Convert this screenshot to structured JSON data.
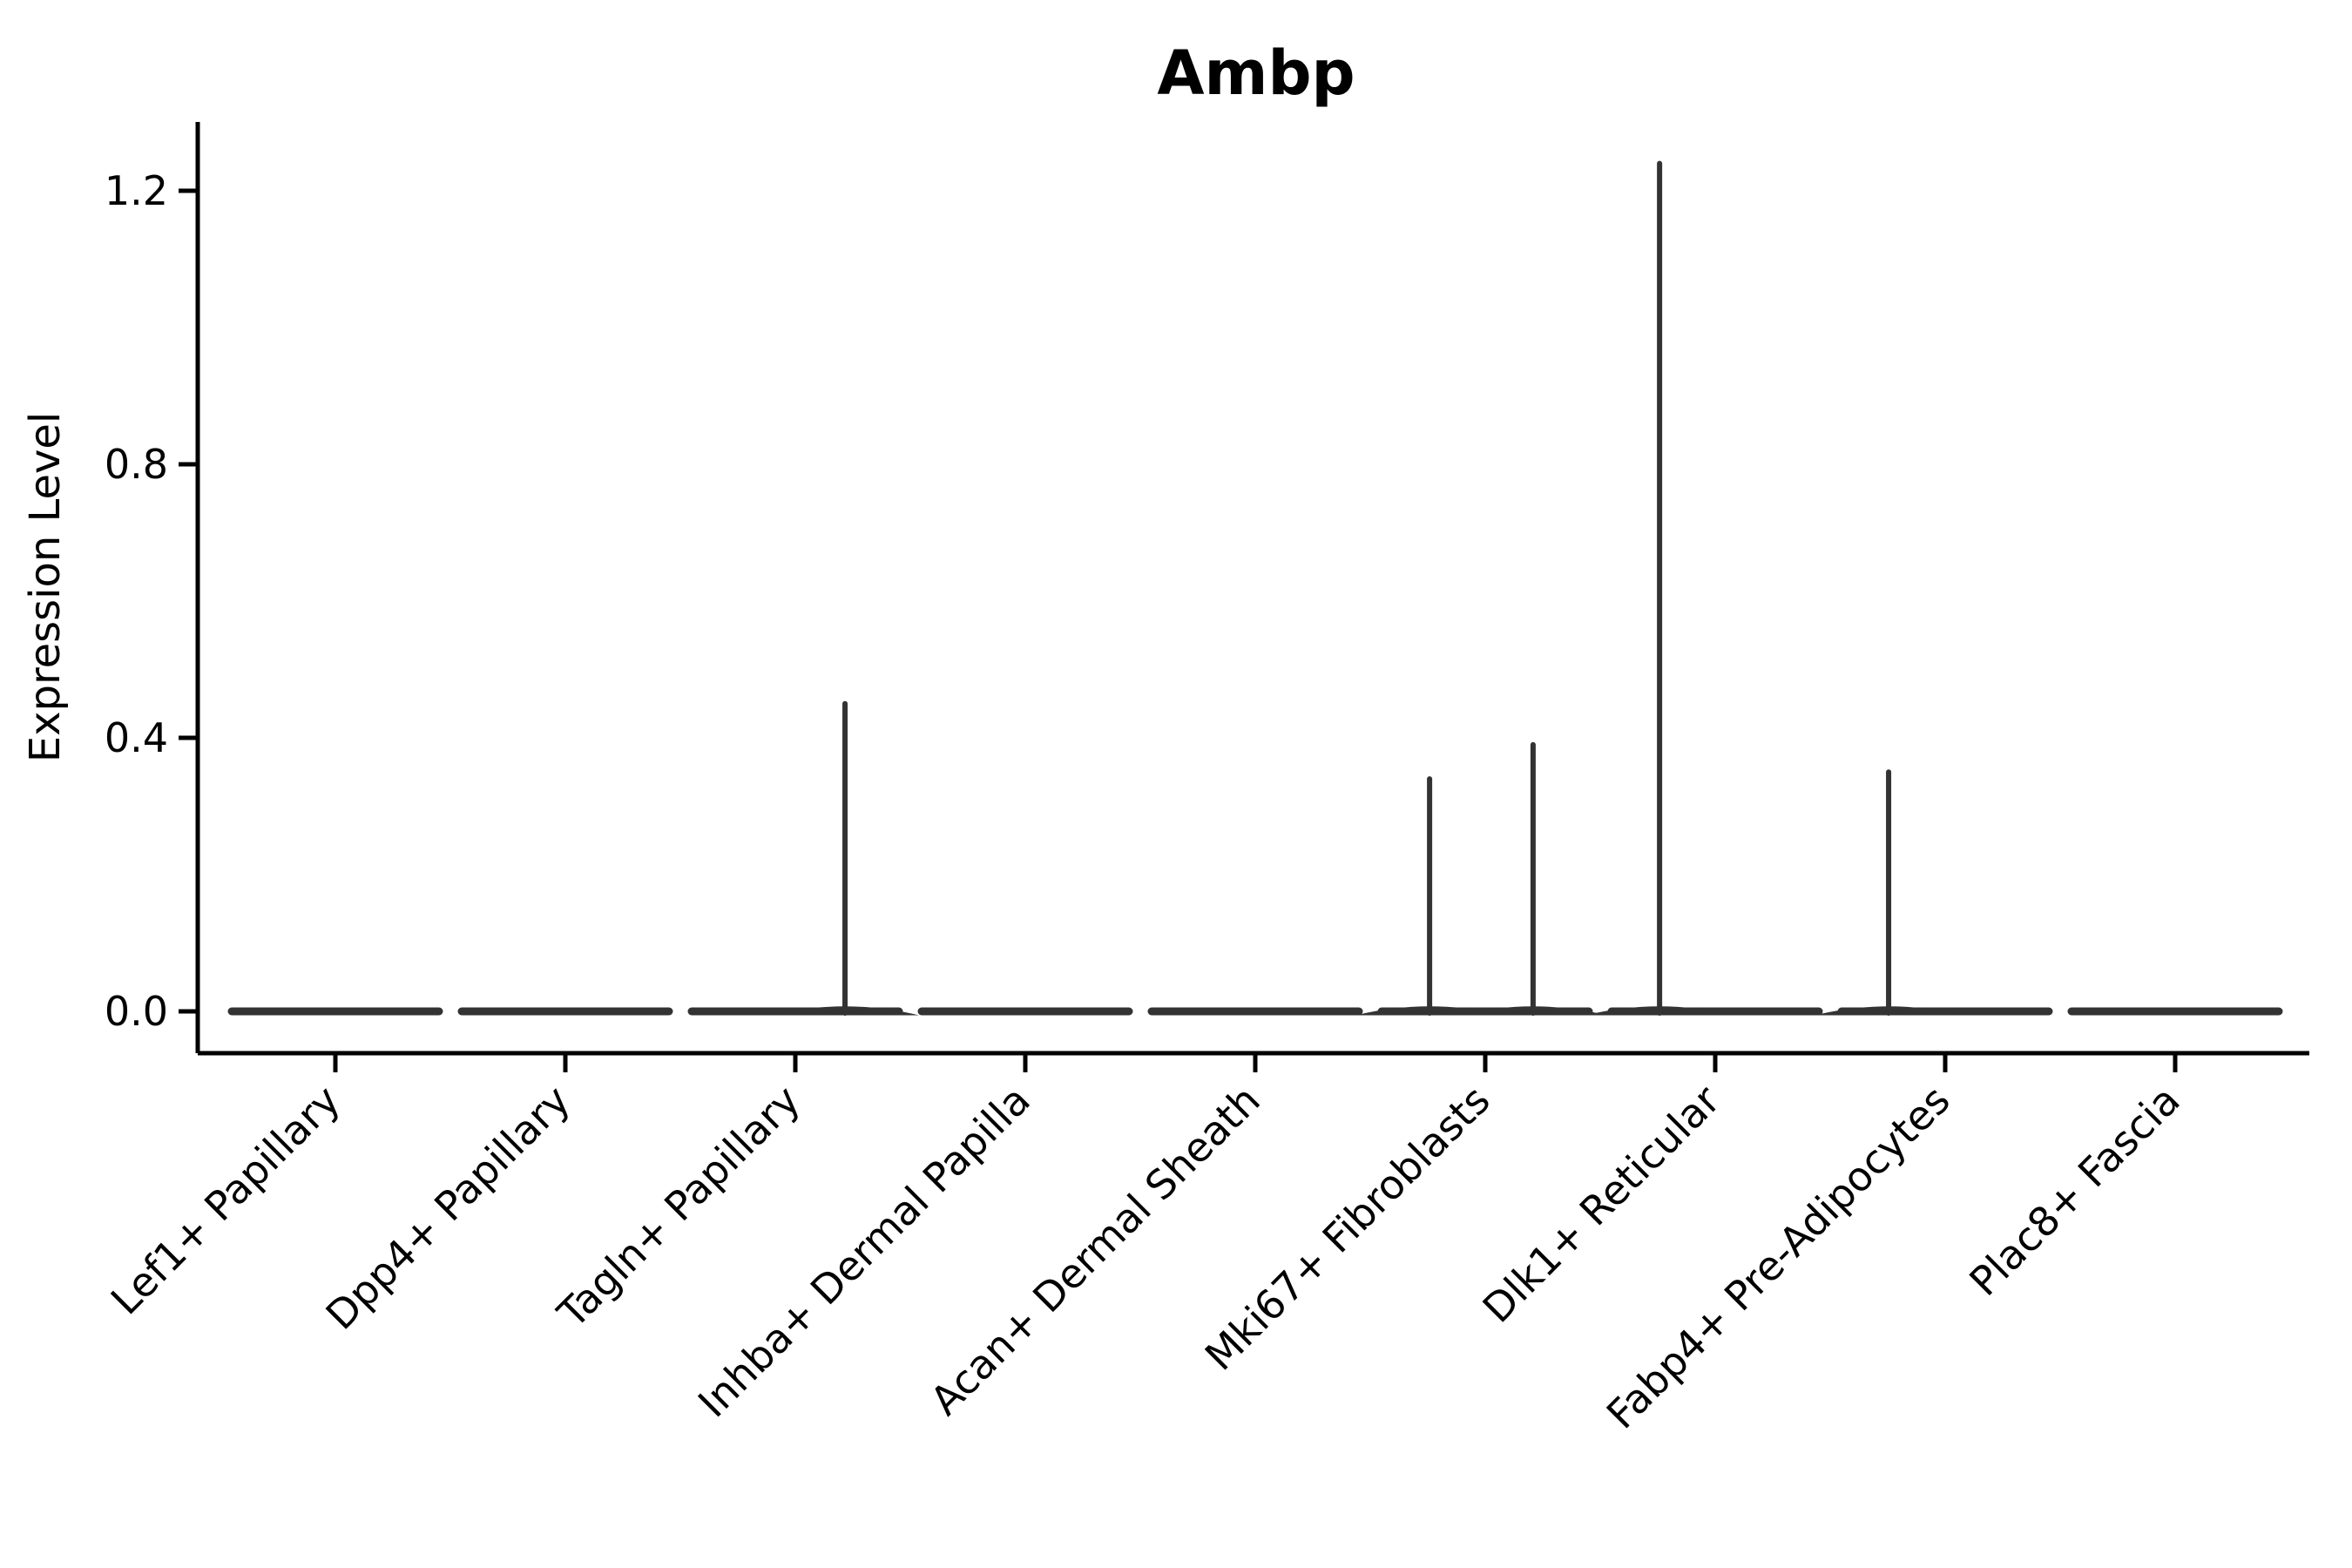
{
  "figure": {
    "title": "Ambp",
    "y_axis_label": "Expression Level"
  },
  "chart_data": {
    "type": "violin",
    "title": "Ambp",
    "xlabel": "",
    "ylabel": "Expression Level",
    "categories": [
      "Lef1+ Papillary",
      "Dpp4+ Papillary",
      "Tagln+ Papillary",
      "Inhba+ Dermal Papilla",
      "Acan+ Dermal Sheath",
      "Mki67+ Fibroblasts",
      "Dlk1+ Reticular",
      "Fabp4+ Pre-Adipocytes",
      "Plac8+ Fascia"
    ],
    "x_tick_rotation_deg": 45,
    "y_ticks": [
      0.0,
      0.4,
      0.8,
      1.2
    ],
    "y_tick_labels": [
      "0.0",
      "0.4",
      "0.8",
      "1.2"
    ],
    "ylim": [
      0.0,
      1.3
    ],
    "grid": false,
    "legend": "none",
    "violin_width_units": 0.9,
    "violin_color": "#333333",
    "axis_color": "#000000",
    "series": [
      {
        "category": "Lef1+ Papillary",
        "baseline_value": 0.0,
        "max_expression": 0.0,
        "spikes": []
      },
      {
        "category": "Dpp4+ Papillary",
        "baseline_value": 0.0,
        "max_expression": 0.0,
        "spikes": []
      },
      {
        "category": "Tagln+ Papillary",
        "baseline_value": 0.0,
        "max_expression": 0.45,
        "spikes": [
          {
            "x_offset_units": 0.216,
            "value": 0.45
          }
        ]
      },
      {
        "category": "Inhba+ Dermal Papilla",
        "baseline_value": 0.0,
        "max_expression": 0.0,
        "spikes": []
      },
      {
        "category": "Acan+ Dermal Sheath",
        "baseline_value": 0.0,
        "max_expression": 0.0,
        "spikes": []
      },
      {
        "category": "Mki67+ Fibroblasts",
        "baseline_value": 0.0,
        "max_expression": 0.39,
        "spikes": [
          {
            "x_offset_units": -0.242,
            "value": 0.34
          },
          {
            "x_offset_units": 0.208,
            "value": 0.39
          }
        ]
      },
      {
        "category": "Dlk1+ Reticular",
        "baseline_value": 0.0,
        "max_expression": 1.24,
        "spikes": [
          {
            "x_offset_units": -0.242,
            "value": 1.24
          }
        ]
      },
      {
        "category": "Fabp4+ Pre-Adipocytes",
        "baseline_value": 0.0,
        "max_expression": 0.35,
        "spikes": [
          {
            "x_offset_units": -0.246,
            "value": 0.35
          }
        ]
      },
      {
        "category": "Plac8+ Fascia",
        "baseline_value": 0.0,
        "max_expression": 0.0,
        "spikes": []
      }
    ]
  }
}
